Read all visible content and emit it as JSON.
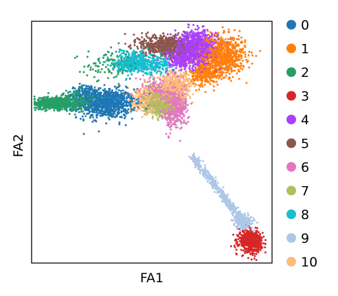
{
  "chart_data": {
    "type": "scatter",
    "title": "",
    "xlabel": "FA1",
    "ylabel": "FA2",
    "xlim": [
      0,
      100
    ],
    "ylim": [
      0,
      100
    ],
    "grid": false,
    "ticks": false,
    "legend_position": "right",
    "series": [
      {
        "name": "0",
        "color": "#1f77b4",
        "clusters": [
          {
            "cx": 31,
            "cy": 66,
            "sx": 6,
            "sy": 3.0,
            "n": 900
          },
          {
            "cx": 23,
            "cy": 70,
            "sx": 2.5,
            "sy": 2,
            "n": 120
          }
        ]
      },
      {
        "name": "1",
        "color": "#ff7f0e",
        "clusters": [
          {
            "cx": 79,
            "cy": 86,
            "sx": 5,
            "sy": 4,
            "n": 800
          },
          {
            "cx": 72,
            "cy": 78,
            "sx": 3,
            "sy": 2.5,
            "n": 250
          }
        ]
      },
      {
        "name": "2",
        "color": "#279e68",
        "clusters": [
          {
            "cx": 9,
            "cy": 66,
            "sx": 5,
            "sy": 1.2,
            "n": 650
          },
          {
            "cx": 19,
            "cy": 67,
            "sx": 4,
            "sy": 2,
            "n": 250
          },
          {
            "cx": 34,
            "cy": 82,
            "sx": 6,
            "sy": 3,
            "n": 120
          }
        ]
      },
      {
        "name": "3",
        "color": "#d62728",
        "clusters": [
          {
            "cx": 91,
            "cy": 9,
            "sx": 2.4,
            "sy": 2.2,
            "n": 550
          }
        ]
      },
      {
        "name": "4",
        "color": "#aa40fc",
        "clusters": [
          {
            "cx": 68,
            "cy": 89,
            "sx": 4.5,
            "sy": 3.5,
            "n": 900
          },
          {
            "cx": 62,
            "cy": 84,
            "sx": 3,
            "sy": 2.5,
            "n": 200
          }
        ]
      },
      {
        "name": "5",
        "color": "#8c564b",
        "clusters": [
          {
            "cx": 55,
            "cy": 90,
            "sx": 5,
            "sy": 2.2,
            "n": 550
          }
        ]
      },
      {
        "name": "6",
        "color": "#e377c2",
        "clusters": [
          {
            "cx": 59,
            "cy": 66,
            "sx": 2.8,
            "sy": 4.5,
            "n": 650
          },
          {
            "cx": 53,
            "cy": 71,
            "sx": 4,
            "sy": 3,
            "n": 200
          }
        ]
      },
      {
        "name": "7",
        "color": "#b5bd61",
        "clusters": [
          {
            "cx": 53,
            "cy": 66,
            "sx": 3,
            "sy": 2.4,
            "n": 600
          }
        ]
      },
      {
        "name": "8",
        "color": "#17becf",
        "clusters": [
          {
            "cx": 43,
            "cy": 83,
            "sx": 4,
            "sy": 2.2,
            "n": 450
          },
          {
            "cx": 53,
            "cy": 82,
            "sx": 3,
            "sy": 2,
            "n": 120
          }
        ]
      },
      {
        "name": "9",
        "color": "#aec7e8",
        "clusters": [
          {
            "cx": 88,
            "cy": 17,
            "sx": 2.2,
            "sy": 1.5,
            "n": 220
          }
        ],
        "trajectory": {
          "from": [
            67,
            44
          ],
          "to": [
            88,
            17
          ],
          "spread": 0.8,
          "n": 420
        }
      },
      {
        "name": "10",
        "color": "#ffbb78",
        "clusters": [
          {
            "cx": 60,
            "cy": 73,
            "sx": 3.5,
            "sy": 3,
            "n": 450
          },
          {
            "cx": 47,
            "cy": 68,
            "sx": 3,
            "sy": 2.5,
            "n": 250
          }
        ]
      }
    ]
  }
}
